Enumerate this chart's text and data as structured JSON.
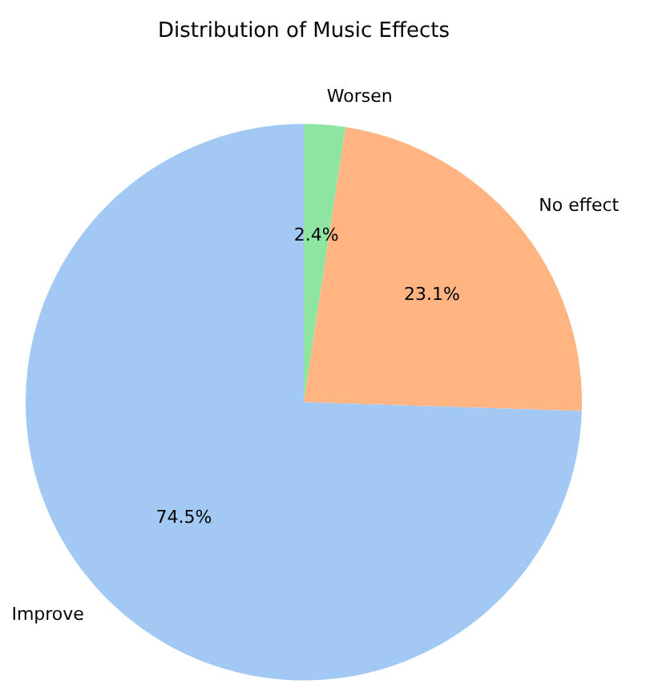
{
  "chart_data": {
    "type": "pie",
    "title": "Distribution of Music Effects",
    "categories": [
      "Worsen",
      "No effect",
      "Improve"
    ],
    "values": [
      2.4,
      23.1,
      74.5
    ],
    "colors": [
      "#8de5a1",
      "#ffb482",
      "#a1c9f4"
    ],
    "value_labels": [
      "2.4%",
      "23.1%",
      "74.5%"
    ],
    "legend": false
  }
}
